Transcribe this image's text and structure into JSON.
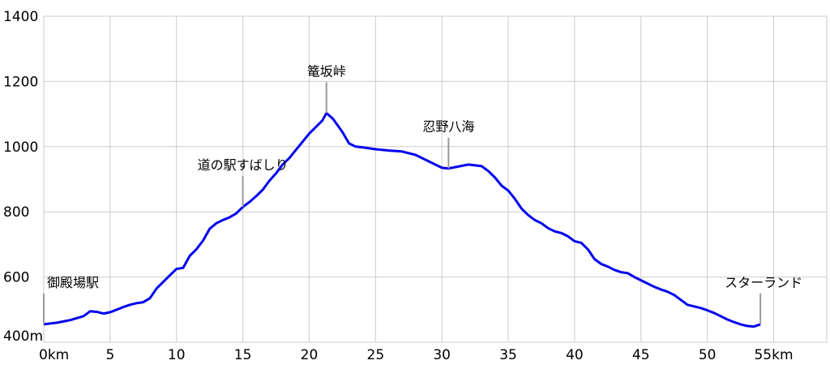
{
  "chart_data": {
    "type": "line",
    "x_unit_label": "km",
    "y_unit_label": "m",
    "xlim": [
      0,
      59
    ],
    "ylim": [
      400,
      1400
    ],
    "x_ticks": [
      0,
      5,
      10,
      15,
      20,
      25,
      30,
      35,
      40,
      45,
      50,
      55
    ],
    "x_tick_labels": [
      "0km",
      "5",
      "10",
      "15",
      "20",
      "25",
      "30",
      "35",
      "40",
      "45",
      "50",
      "55km"
    ],
    "y_ticks": [
      400,
      600,
      800,
      1000,
      1200,
      1400
    ],
    "y_tick_labels": [
      "400m",
      "600",
      "800",
      "1000",
      "1200",
      "1400"
    ],
    "grid": true,
    "series": [
      {
        "color": "#0000ee",
        "x": [
          0,
          1,
          2,
          3,
          3.5,
          4,
          4.5,
          5,
          5.5,
          6,
          6.5,
          7,
          7.5,
          8,
          8.5,
          9,
          9.5,
          10,
          10.5,
          11,
          11.5,
          12,
          12.5,
          13,
          13.5,
          14,
          14.5,
          15,
          15.5,
          16,
          16.5,
          17,
          17.5,
          18,
          18.5,
          19,
          19.5,
          20,
          20.5,
          21,
          21.3,
          21.8,
          22.5,
          23,
          23.5,
          24,
          25,
          26,
          27,
          28,
          28.5,
          29,
          29.5,
          30,
          30.5,
          31,
          32,
          33,
          33.5,
          34,
          34.5,
          35,
          35.5,
          36,
          36.5,
          37,
          37.5,
          38,
          38.5,
          39,
          39.5,
          40,
          40.5,
          41,
          41.5,
          42,
          42.5,
          43,
          43.5,
          44,
          44.5,
          45,
          45.5,
          46,
          46.5,
          47,
          47.5,
          48,
          48.5,
          49,
          49.5,
          50,
          50.5,
          51,
          51.5,
          52,
          52.5,
          53,
          53.5,
          54
        ],
        "y": [
          455,
          460,
          468,
          480,
          495,
          493,
          488,
          492,
          500,
          508,
          515,
          520,
          523,
          535,
          565,
          585,
          605,
          625,
          628,
          665,
          685,
          712,
          748,
          765,
          775,
          783,
          795,
          815,
          830,
          848,
          868,
          895,
          918,
          945,
          965,
          990,
          1015,
          1040,
          1060,
          1080,
          1103,
          1085,
          1045,
          1010,
          1000,
          998,
          992,
          988,
          985,
          975,
          965,
          955,
          945,
          935,
          933,
          937,
          945,
          940,
          925,
          905,
          880,
          865,
          840,
          810,
          790,
          775,
          765,
          750,
          740,
          735,
          725,
          710,
          705,
          685,
          655,
          640,
          632,
          622,
          615,
          612,
          600,
          590,
          580,
          570,
          562,
          555,
          545,
          530,
          515,
          510,
          505,
          498,
          490,
          480,
          470,
          462,
          455,
          450,
          448,
          455
        ]
      }
    ],
    "annotations": [
      {
        "label": "御殿場駅",
        "x": 0,
        "y": 455
      },
      {
        "label": "道の駅すばしり",
        "x": 15,
        "y": 815
      },
      {
        "label": "篭坂峠",
        "x": 21.3,
        "y": 1103
      },
      {
        "label": "忍野八海",
        "x": 30.5,
        "y": 933
      },
      {
        "label": "スターランド",
        "x": 54,
        "y": 455
      }
    ]
  }
}
